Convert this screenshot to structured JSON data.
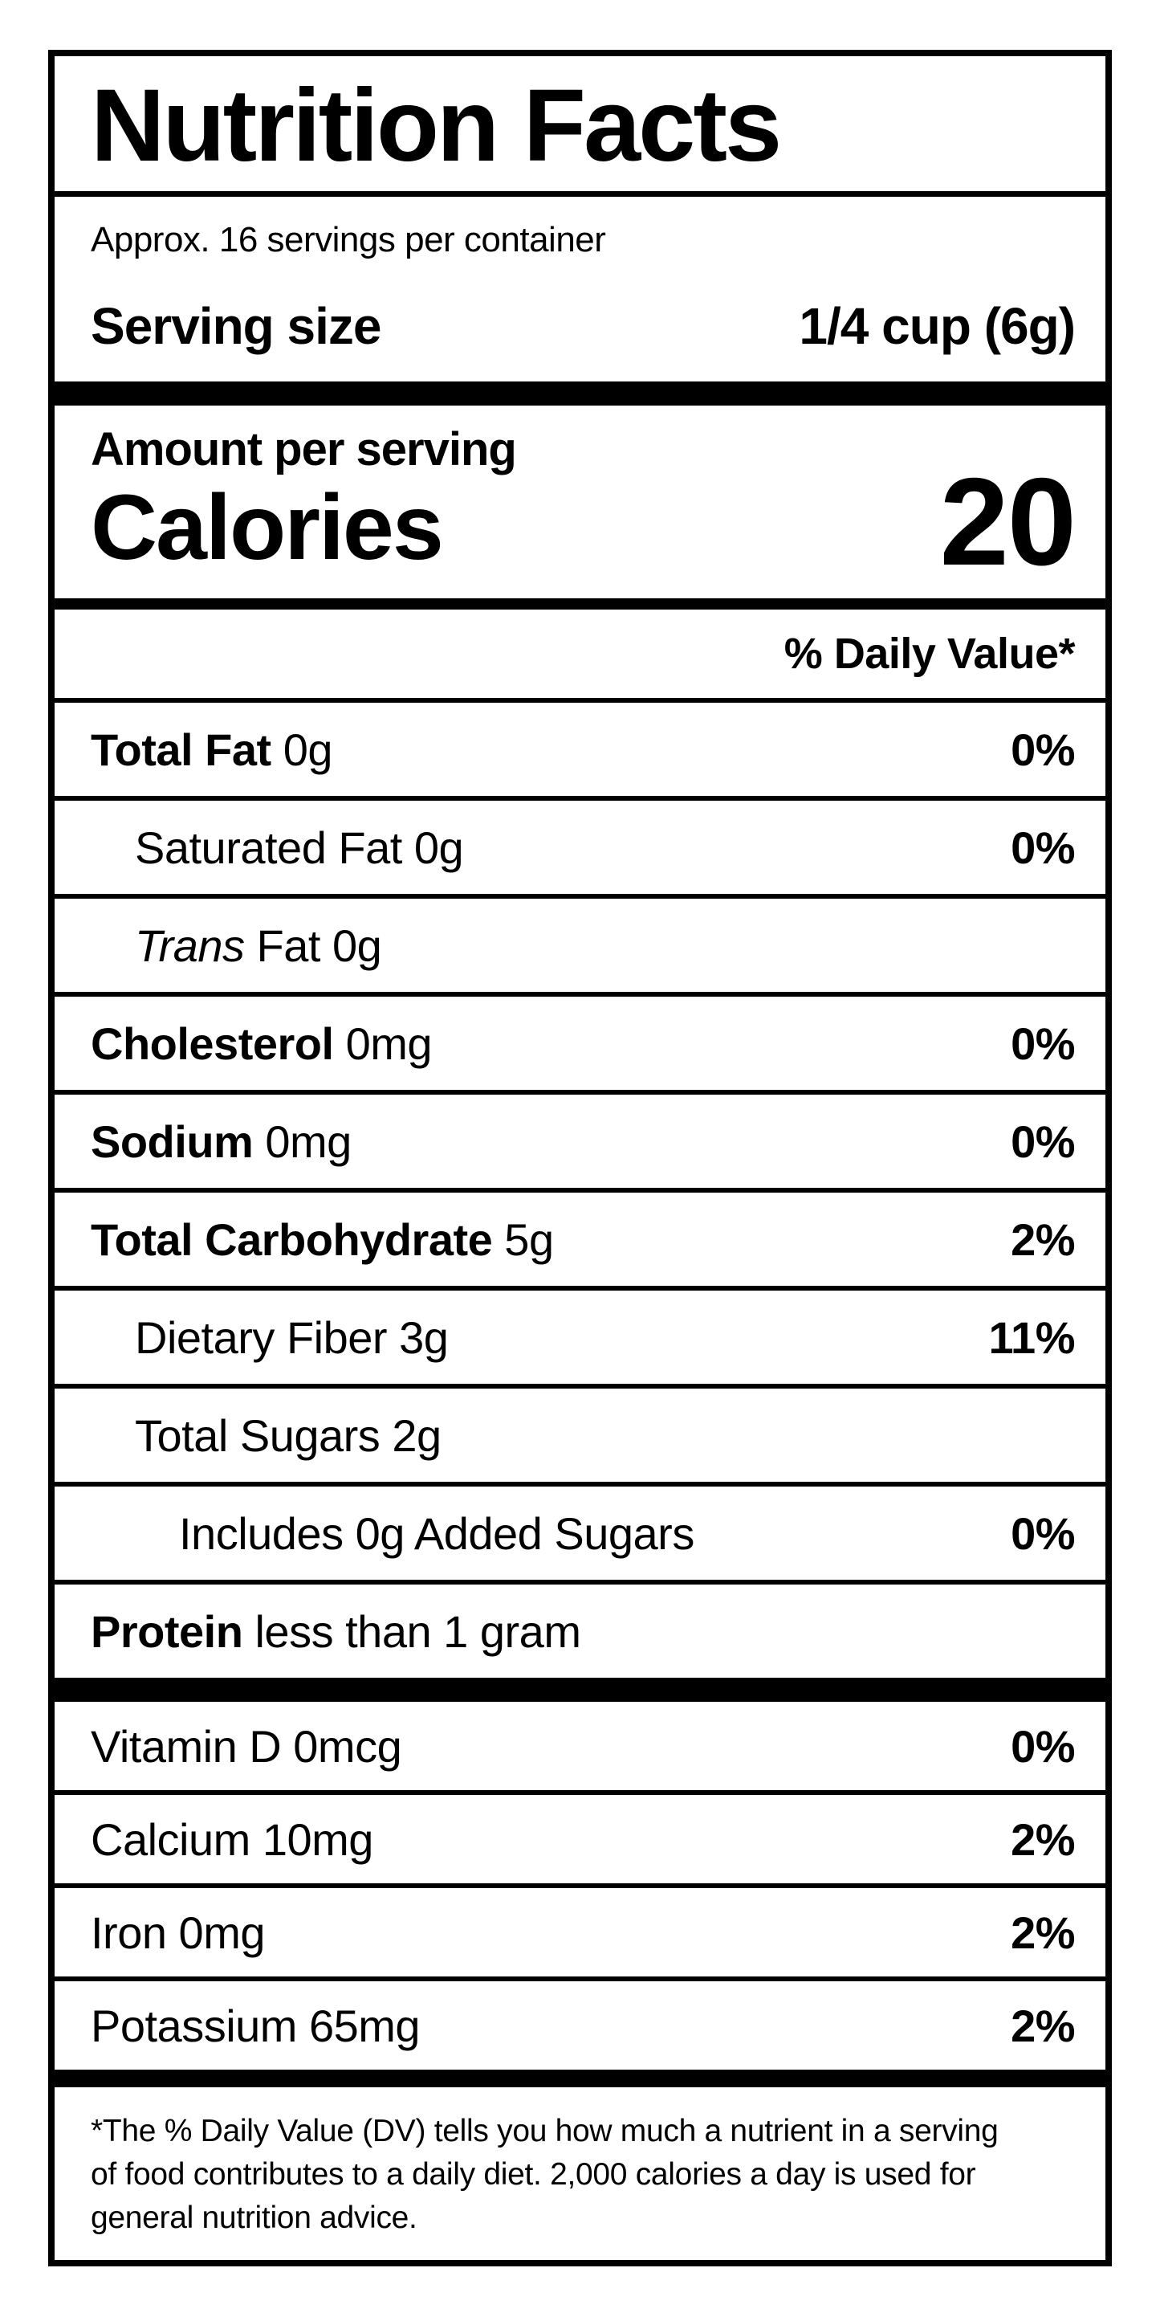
{
  "title": "Nutrition Facts",
  "servings_per_container": "Approx. 16 servings per container",
  "serving_size": {
    "label": "Serving size",
    "value": "1/4 cup (6g)"
  },
  "calories": {
    "heading": "Amount per serving",
    "label": "Calories",
    "value": "20"
  },
  "daily_value_header": "% Daily Value*",
  "nutrients": [
    {
      "bold": "Total Fat",
      "italic": "",
      "rest": " 0g",
      "percent": "0%"
    },
    {
      "bold": "",
      "italic": "",
      "rest": "Saturated Fat 0g",
      "percent": "0%"
    },
    {
      "bold": "",
      "italic": "Trans",
      "rest": " Fat 0g",
      "percent": ""
    },
    {
      "bold": "Cholesterol",
      "italic": "",
      "rest": " 0mg",
      "percent": "0%"
    },
    {
      "bold": "Sodium",
      "italic": "",
      "rest": " 0mg",
      "percent": "0%"
    },
    {
      "bold": "Total Carbohydrate",
      "italic": "",
      "rest": " 5g",
      "percent": "2%"
    },
    {
      "bold": "",
      "italic": "",
      "rest": "Dietary Fiber 3g",
      "percent": "11%"
    },
    {
      "bold": "",
      "italic": "",
      "rest": "Total Sugars 2g",
      "percent": ""
    },
    {
      "bold": "",
      "italic": "",
      "rest": "Includes 0g Added Sugars",
      "percent": "0%"
    },
    {
      "bold": "Protein",
      "italic": "",
      "rest": " less than 1 gram",
      "percent": ""
    }
  ],
  "micronutrients": [
    {
      "rest": "Vitamin D 0mcg",
      "percent": "0%"
    },
    {
      "rest": "Calcium 10mg",
      "percent": "2%"
    },
    {
      "rest": "Iron 0mg",
      "percent": "2%"
    },
    {
      "rest": "Potassium 65mg",
      "percent": "2%"
    }
  ],
  "footnote_lines": [
    "*The % Daily Value (DV) tells you how much a nutrient in a serving",
    "of food contributes to a daily diet. 2,000 calories a day is used for",
    "general nutrition advice."
  ],
  "colors": {
    "text": "#000000",
    "background": "#ffffff",
    "border": "#000000"
  }
}
